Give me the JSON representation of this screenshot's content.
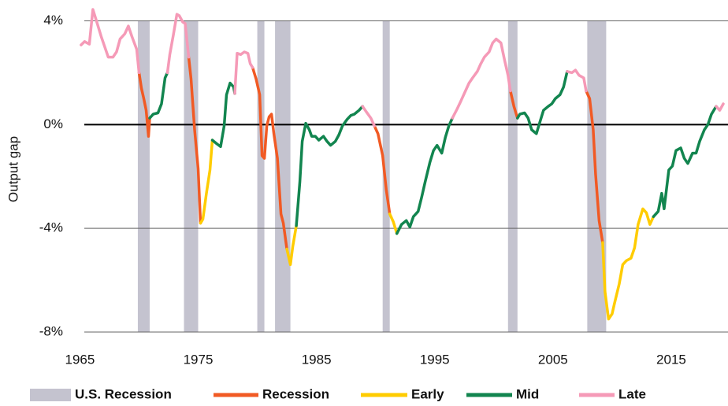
{
  "chart_data": {
    "type": "line",
    "y_label": "Output gap",
    "xlim": [
      1965,
      2019.8
    ],
    "ylim": [
      -8,
      4.5
    ],
    "xticks": [
      1965,
      1975,
      1985,
      1995,
      2005,
      2015
    ],
    "yticks": [
      {
        "value": 4,
        "label": "4%"
      },
      {
        "value": 0,
        "label": "0%"
      },
      {
        "value": -4,
        "label": "-4%"
      },
      {
        "value": -8,
        "label": "-8%"
      }
    ],
    "recession": {
      "name": "U.S. Recession",
      "color": "#c4c3cf",
      "ranges": [
        [
          1969.9,
          1970.9
        ],
        [
          1973.8,
          1975.0
        ],
        [
          1980.0,
          1980.6
        ],
        [
          1981.5,
          1982.8
        ],
        [
          1990.6,
          1991.2
        ],
        [
          2001.2,
          2002.0
        ],
        [
          2007.9,
          2009.5
        ]
      ]
    },
    "series": [
      {
        "name": "Recession",
        "color": "#f15a24",
        "x": [
          1970.0,
          1970.2,
          1970.4,
          1970.6,
          1970.8,
          1970.9,
          null,
          1974.2,
          1974.4,
          1974.7,
          1975.0,
          1975.2,
          null,
          1979.6,
          1979.9,
          1980.2,
          1980.4,
          1980.6,
          1980.8,
          1981.0,
          1981.2,
          1981.4,
          1981.7,
          1982.0,
          1982.2,
          1982.5,
          null,
          1989.9,
          1990.2,
          1990.6,
          1990.9,
          1991.2,
          null,
          2001.4,
          2001.7,
          2002.0,
          null,
          2007.8,
          2008.1,
          2008.4,
          2008.6,
          2008.9,
          2009.2
        ],
        "values": [
          2.0,
          1.4,
          1.0,
          0.55,
          -0.45,
          0.25,
          null,
          2.6,
          1.75,
          -0.2,
          -1.7,
          -3.8,
          null,
          2.2,
          1.75,
          1.15,
          -1.2,
          -1.3,
          -0.05,
          0.3,
          0.4,
          -0.35,
          -1.3,
          -3.45,
          -3.8,
          -4.8,
          null,
          -0.05,
          -0.35,
          -1.2,
          -2.5,
          -3.45,
          null,
          1.3,
          0.7,
          0.25,
          null,
          1.3,
          1.0,
          -0.2,
          -1.9,
          -3.7,
          -4.55
        ]
      },
      {
        "name": "Early",
        "color": "#ffcc00",
        "x": [
          1975.2,
          1975.4,
          1975.7,
          1976.0,
          1976.2,
          null,
          1982.5,
          1982.8,
          1983.0,
          1983.3,
          null,
          1991.2,
          1991.5,
          1991.8,
          null,
          2009.2,
          2009.4,
          2009.7,
          2010.0,
          2010.2,
          2010.6,
          2010.9,
          2011.2,
          2011.6,
          2011.9,
          2012.2,
          2012.6,
          2012.9,
          2013.2,
          2013.5
        ],
        "values": [
          -3.8,
          -3.65,
          -2.65,
          -1.75,
          -0.6,
          null,
          -4.8,
          -5.4,
          -4.7,
          -3.9,
          null,
          -3.45,
          -3.75,
          -4.2,
          null,
          -4.55,
          -6.45,
          -7.5,
          -7.3,
          -6.9,
          -6.15,
          -5.4,
          -5.25,
          -5.15,
          -4.75,
          -3.85,
          -3.25,
          -3.4,
          -3.85,
          -3.55
        ]
      },
      {
        "name": "Mid",
        "color": "#12854f",
        "x": [
          1970.9,
          1971.2,
          1971.6,
          1971.9,
          1972.2,
          1972.4,
          null,
          1976.2,
          1976.6,
          1976.9,
          1977.2,
          1977.4,
          1977.7,
          1978.0,
          1978.1,
          null,
          1983.3,
          1983.6,
          1983.8,
          1984.1,
          1984.4,
          1984.6,
          1984.9,
          1985.2,
          1985.6,
          1985.9,
          1986.2,
          1986.6,
          1986.9,
          1987.2,
          1987.6,
          1987.9,
          1988.2,
          1988.6,
          1988.9,
          null,
          1991.8,
          1992.2,
          1992.6,
          1992.9,
          1993.2,
          1993.6,
          1993.9,
          1994.2,
          1994.6,
          1994.9,
          1995.2,
          1995.6,
          1995.9,
          1996.2,
          1996.5,
          null,
          2002.0,
          2002.2,
          2002.6,
          2002.9,
          2003.2,
          2003.6,
          2003.9,
          2004.2,
          2004.6,
          2004.9,
          2005.2,
          2005.6,
          2005.9,
          2006.2,
          null,
          2013.5,
          2013.9,
          2014.2,
          2014.4,
          2014.8,
          2015.1,
          2015.4,
          2015.8,
          2016.1,
          2016.4,
          2016.8,
          2017.1,
          2017.4,
          2017.8,
          2018.1,
          2018.4,
          2018.8
        ],
        "values": [
          0.25,
          0.4,
          0.45,
          0.8,
          1.8,
          2.0,
          null,
          -0.6,
          -0.75,
          -0.85,
          -0.05,
          1.15,
          1.6,
          1.45,
          1.2,
          null,
          -3.9,
          -2.2,
          -0.65,
          0.05,
          -0.2,
          -0.45,
          -0.45,
          -0.6,
          -0.45,
          -0.65,
          -0.8,
          -0.65,
          -0.4,
          -0.05,
          0.2,
          0.35,
          0.4,
          0.55,
          0.7,
          null,
          -4.2,
          -3.85,
          -3.7,
          -3.95,
          -3.55,
          -3.35,
          -2.8,
          -2.2,
          -1.45,
          -1.0,
          -0.8,
          -1.1,
          -0.5,
          -0.05,
          0.25,
          null,
          0.25,
          0.4,
          0.45,
          0.25,
          -0.2,
          -0.35,
          0.1,
          0.55,
          0.7,
          0.8,
          1.0,
          1.15,
          1.45,
          2.05,
          null,
          -3.55,
          -3.35,
          -2.65,
          -3.25,
          -1.75,
          -1.6,
          -1.0,
          -0.9,
          -1.3,
          -1.5,
          -1.1,
          -1.1,
          -0.65,
          -0.2,
          0.0,
          0.4,
          0.7
        ]
      },
      {
        "name": "Late",
        "color": "#f59ab7",
        "x": [
          1965.1,
          1965.4,
          1965.8,
          1966.1,
          1966.4,
          1966.8,
          1967.1,
          1967.4,
          1967.8,
          1968.1,
          1968.4,
          1968.8,
          1969.1,
          1969.4,
          1969.8,
          1970.0,
          null,
          1972.4,
          1972.6,
          1972.9,
          1973.2,
          1973.4,
          1973.7,
          1973.9,
          1974.2,
          null,
          1978.1,
          1978.3,
          1978.6,
          1978.9,
          1979.2,
          1979.4,
          1979.6,
          null,
          1988.9,
          1989.2,
          1989.6,
          1989.9,
          null,
          1996.5,
          1996.9,
          1997.2,
          1997.6,
          1997.9,
          1998.2,
          1998.6,
          1998.9,
          1999.2,
          1999.6,
          1999.9,
          2000.2,
          2000.6,
          2000.9,
          2001.2,
          2001.4,
          null,
          2006.2,
          2006.6,
          2006.9,
          2007.2,
          2007.6,
          2007.8,
          null,
          2018.8,
          2019.1,
          2019.4
        ],
        "values": [
          3.07,
          3.2,
          3.1,
          4.44,
          4.0,
          3.4,
          3.0,
          2.6,
          2.6,
          2.8,
          3.3,
          3.5,
          3.8,
          3.4,
          2.9,
          2.0,
          null,
          2.0,
          2.7,
          3.45,
          4.25,
          4.2,
          3.95,
          3.9,
          2.6,
          null,
          1.2,
          2.75,
          2.7,
          2.8,
          2.75,
          2.35,
          2.2,
          null,
          0.7,
          0.5,
          0.25,
          -0.05,
          null,
          0.25,
          0.6,
          0.9,
          1.3,
          1.6,
          1.8,
          2.05,
          2.35,
          2.6,
          2.8,
          3.15,
          3.3,
          3.15,
          2.5,
          1.9,
          1.3,
          null,
          2.05,
          2.0,
          2.1,
          1.9,
          1.8,
          1.3,
          null,
          0.7,
          0.55,
          0.8
        ]
      }
    ]
  }
}
